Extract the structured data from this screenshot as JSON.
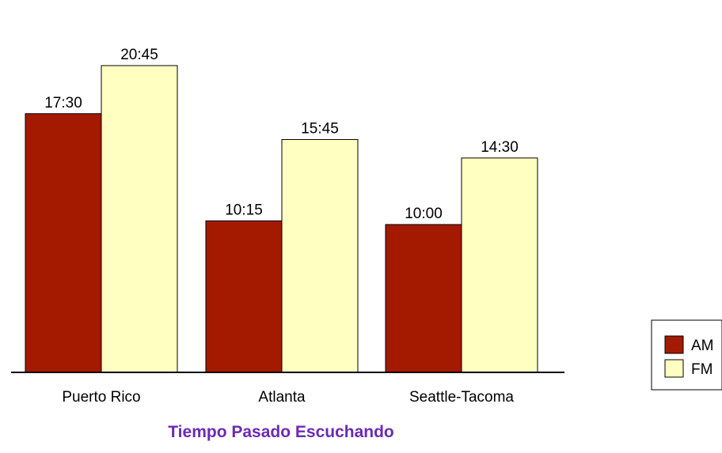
{
  "chart_data": {
    "type": "bar",
    "title": "Tiempo Pasado Escuchando",
    "categories": [
      "Puerto Rico",
      "Atlanta",
      "Seattle-Tacoma"
    ],
    "series": [
      {
        "name": "AM",
        "values": [
          17.5,
          10.25,
          10.0
        ],
        "labels": [
          "17:30",
          "10:15",
          "10:00"
        ]
      },
      {
        "name": "FM",
        "values": [
          20.75,
          15.75,
          14.5
        ],
        "labels": [
          "20:45",
          "15:45",
          "14:30"
        ]
      }
    ],
    "ylim": [
      0,
      22
    ],
    "grid": false,
    "legend": "right"
  },
  "colors": {
    "AM": "#a31a00",
    "FM": "#ffffc2",
    "title": "#6a2ab5",
    "stroke": "#000000"
  }
}
